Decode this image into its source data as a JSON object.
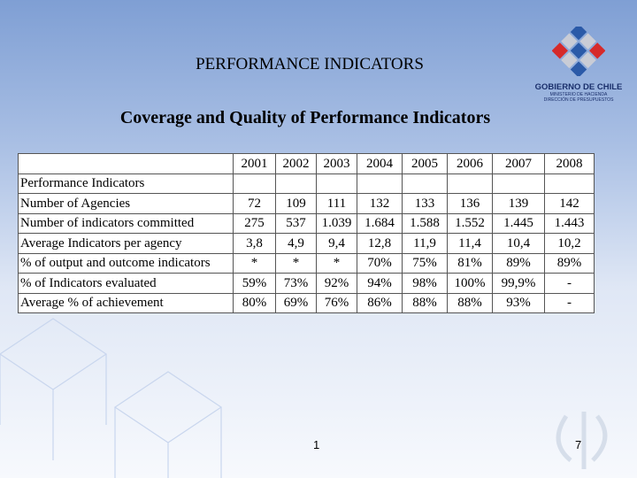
{
  "header": {
    "title": "PERFORMANCE INDICATORS",
    "subtitle": "Coverage and Quality of Performance Indicators"
  },
  "logo": {
    "line1": "GOBIERNO DE CHILE",
    "line2": "MINISTERIO DE HACIENDA",
    "line3": "DIRECCIÓN DE PRESUPUESTOS"
  },
  "table": {
    "columns": [
      "2001",
      "2002",
      "2003",
      "2004",
      "2005",
      "2006",
      "2007",
      "2008"
    ],
    "section": "Performance Indicators",
    "rows": [
      {
        "label": "Number of Agencies",
        "cells": [
          "72",
          "109",
          "111",
          "132",
          "133",
          "136",
          "139",
          "142"
        ]
      },
      {
        "label": "Number of indicators committed",
        "cells": [
          "275",
          "537",
          "1.039",
          "1.684",
          "1.588",
          "1.552",
          "1.445",
          "1.443"
        ]
      },
      {
        "label": "Average Indicators per agency",
        "cells": [
          "3,8",
          "4,9",
          "9,4",
          "12,8",
          "11,9",
          "11,4",
          "10,4",
          "10,2"
        ]
      },
      {
        "label": "% of output and outcome indicators",
        "cells": [
          "*",
          "*",
          "*",
          "70%",
          "75%",
          "81%",
          "89%",
          "89%"
        ]
      },
      {
        "label": "% of Indicators evaluated",
        "cells": [
          "59%",
          "73%",
          "92%",
          "94%",
          "98%",
          "100%",
          "99,9%",
          "-"
        ]
      },
      {
        "label": "Average % of achievement",
        "cells": [
          "80%",
          "69%",
          "76%",
          "86%",
          "88%",
          "88%",
          "93%",
          "-"
        ]
      }
    ]
  },
  "footer": {
    "left_number": "1",
    "right_number": "7"
  }
}
